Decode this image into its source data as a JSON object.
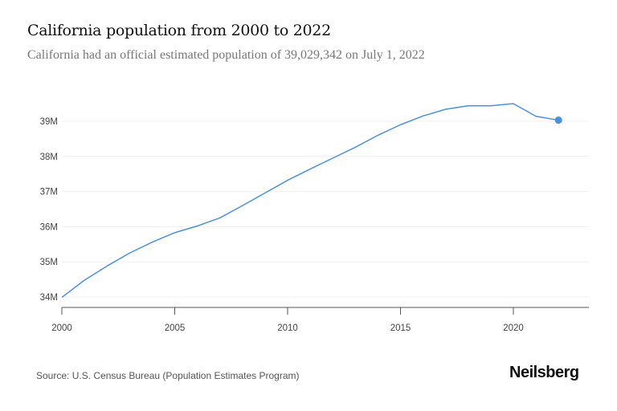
{
  "header": {
    "title": "California population from 2000 to 2022",
    "subtitle": "California had an official estimated population of 39,029,342 on July 1, 2022"
  },
  "footer": {
    "source": "Source: U.S. Census Bureau (Population Estimates Program)",
    "logo": "Neilsberg"
  },
  "chart_data": {
    "type": "line",
    "title": "California population from 2000 to 2022",
    "xlabel": "",
    "ylabel": "",
    "x": [
      2000,
      2001,
      2002,
      2003,
      2004,
      2005,
      2006,
      2007,
      2008,
      2009,
      2010,
      2011,
      2012,
      2013,
      2014,
      2015,
      2016,
      2017,
      2018,
      2019,
      2020,
      2021,
      2022
    ],
    "series": [
      {
        "values": [
          33.99,
          34.48,
          34.88,
          35.25,
          35.56,
          35.83,
          36.02,
          36.25,
          36.6,
          36.96,
          37.32,
          37.64,
          37.95,
          38.26,
          38.6,
          38.9,
          39.15,
          39.34,
          39.44,
          39.44,
          39.5,
          39.14,
          39.03
        ],
        "color": "#4a8fe0"
      }
    ],
    "unit": "M",
    "xlim": [
      2000,
      2023.3
    ],
    "ylim": [
      33.7,
      39.9
    ],
    "xticks": [
      "2000",
      "2005",
      "2010",
      "2015",
      "2020"
    ],
    "yticks": [
      "34M",
      "35M",
      "36M",
      "37M",
      "38M",
      "39M"
    ],
    "grid": true,
    "highlight_last_point": true
  }
}
